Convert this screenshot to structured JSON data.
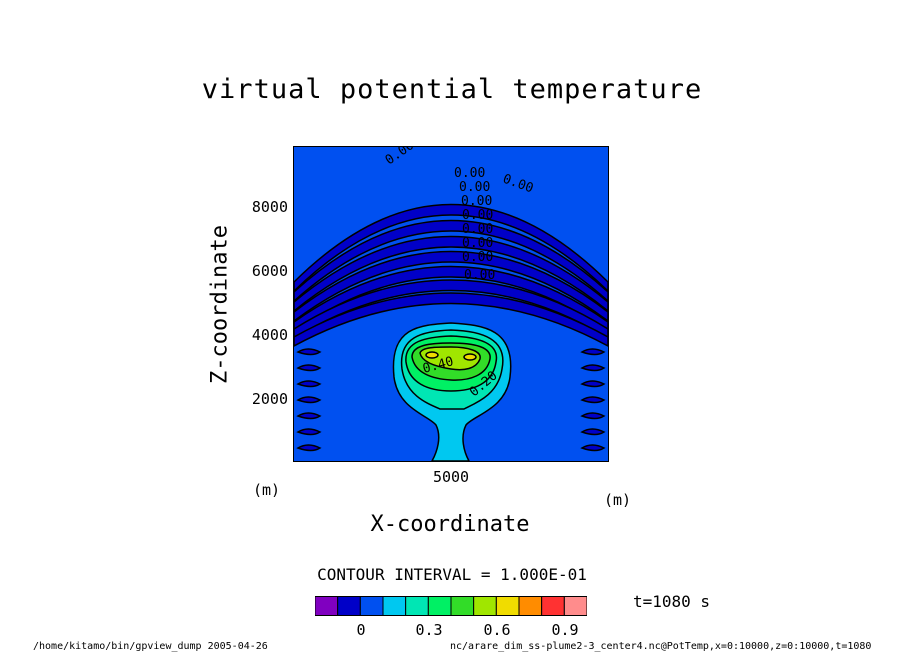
{
  "chart_data": {
    "type": "contour",
    "title": "virtual potential temperature",
    "xlabel": "X-coordinate",
    "ylabel": "Z-coordinate",
    "x_unit": "(m)",
    "y_unit": "(m)",
    "xlim": [
      0,
      10000
    ],
    "ylim": [
      0,
      10000
    ],
    "xticks": [
      5000
    ],
    "yticks": [
      2000,
      4000,
      6000,
      8000
    ],
    "contour_interval_label": "CONTOUR INTERVAL = 1.000E-01",
    "contour_labels": [
      "0.00",
      "0.00",
      "0.00",
      "0.00",
      "0.00",
      "0.00",
      "0.00",
      "0.00",
      "0.00",
      "0.00",
      "0.40",
      "0.20"
    ],
    "colorbar": {
      "colors": [
        "#8000c0",
        "#0000c8",
        "#0050f0",
        "#00c8f0",
        "#00e6b4",
        "#00f064",
        "#32dc28",
        "#a0e600",
        "#f0dc00",
        "#ff8c00",
        "#ff3232",
        "#ff8c8c"
      ],
      "ticks": [
        "0",
        "0.3",
        "0.6",
        "0.9"
      ]
    },
    "time_label": "t=1080 s"
  },
  "footer": {
    "left": "/home/kitamo/bin/gpview_dump  2005-04-26",
    "right": "nc/arare_dim_ss-plume2-3_center4.nc@PotTemp,x=0:10000,z=0:10000,t=1080"
  }
}
